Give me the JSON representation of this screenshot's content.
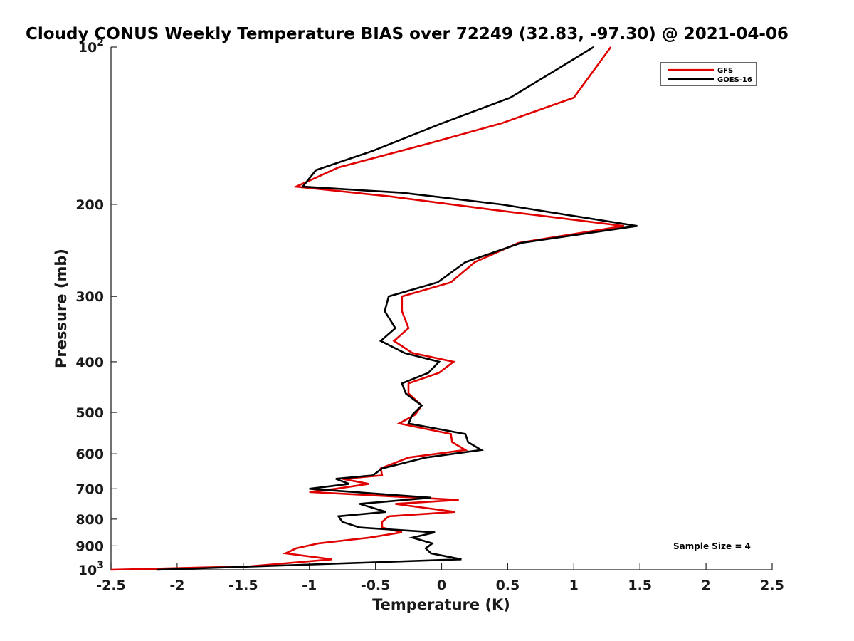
{
  "chart_data": {
    "type": "line",
    "title": "Cloudy CONUS Weekly Temperature BIAS over 72249 (32.83, -97.30) @ 2021-04-06",
    "xlabel": "Temperature (K)",
    "ylabel": "Pressure (mb)",
    "xlim": [
      -2.5,
      2.5
    ],
    "ylim": [
      100,
      1000
    ],
    "y_scale": "log",
    "y_reversed": true,
    "grid": false,
    "legend_position": "top-right",
    "x_ticks": [
      -2.5,
      -2,
      -1.5,
      -1,
      -0.5,
      0,
      0.5,
      1,
      1.5,
      2,
      2.5
    ],
    "x_tick_labels": [
      "-2.5",
      "-2",
      "-1.5",
      "-1",
      "-0.5",
      "0",
      "0.5",
      "1",
      "1.5",
      "2",
      "2.5"
    ],
    "y_ticks": [
      {
        "value": 100,
        "base": "10",
        "exp": "2"
      },
      {
        "value": 200,
        "label": "200"
      },
      {
        "value": 300,
        "label": "300"
      },
      {
        "value": 400,
        "label": "400"
      },
      {
        "value": 500,
        "label": "500"
      },
      {
        "value": 600,
        "label": "600"
      },
      {
        "value": 700,
        "label": "700"
      },
      {
        "value": 800,
        "label": "800"
      },
      {
        "value": 900,
        "label": "900"
      },
      {
        "value": 1000,
        "base": "10",
        "exp": "3"
      }
    ],
    "annotation": "Sample Size = 4",
    "series": [
      {
        "name": "GFS",
        "color": "#e00000",
        "points": [
          [
            1.28,
            100
          ],
          [
            1.0,
            125
          ],
          [
            0.45,
            140
          ],
          [
            -0.1,
            153
          ],
          [
            -0.78,
            170
          ],
          [
            -1.1,
            185
          ],
          [
            -0.4,
            193
          ],
          [
            0.4,
            205
          ],
          [
            1.38,
            220
          ],
          [
            0.58,
            237
          ],
          [
            0.25,
            258
          ],
          [
            0.07,
            282
          ],
          [
            -0.3,
            300
          ],
          [
            -0.3,
            320
          ],
          [
            -0.25,
            345
          ],
          [
            -0.36,
            365
          ],
          [
            -0.22,
            385
          ],
          [
            0.09,
            400
          ],
          [
            -0.02,
            420
          ],
          [
            -0.25,
            440
          ],
          [
            -0.25,
            460
          ],
          [
            -0.15,
            485
          ],
          [
            -0.2,
            505
          ],
          [
            -0.32,
            525
          ],
          [
            0.07,
            550
          ],
          [
            0.08,
            570
          ],
          [
            0.18,
            590
          ],
          [
            -0.25,
            610
          ],
          [
            -0.46,
            640
          ],
          [
            -0.45,
            660
          ],
          [
            -0.75,
            670
          ],
          [
            -0.55,
            685
          ],
          [
            -0.8,
            700
          ],
          [
            -1.0,
            710
          ],
          [
            0.13,
            735
          ],
          [
            -0.35,
            748
          ],
          [
            -0.15,
            760
          ],
          [
            0.1,
            775
          ],
          [
            -0.4,
            790
          ],
          [
            -0.45,
            810
          ],
          [
            -0.45,
            830
          ],
          [
            -0.3,
            848
          ],
          [
            -0.55,
            868
          ],
          [
            -0.93,
            890
          ],
          [
            -1.1,
            910
          ],
          [
            -1.18,
            930
          ],
          [
            -0.83,
            955
          ],
          [
            -1.45,
            985
          ],
          [
            -2.5,
            1000
          ]
        ]
      },
      {
        "name": "GOES-16",
        "color": "#000000",
        "points": [
          [
            1.15,
            100
          ],
          [
            0.52,
            125
          ],
          [
            0.0,
            140
          ],
          [
            -0.52,
            158
          ],
          [
            -0.95,
            172
          ],
          [
            -1.05,
            185
          ],
          [
            -0.3,
            190
          ],
          [
            0.45,
            200
          ],
          [
            1.48,
            220
          ],
          [
            0.6,
            237
          ],
          [
            0.18,
            258
          ],
          [
            -0.03,
            282
          ],
          [
            -0.4,
            300
          ],
          [
            -0.43,
            320
          ],
          [
            -0.35,
            345
          ],
          [
            -0.46,
            365
          ],
          [
            -0.28,
            385
          ],
          [
            -0.02,
            400
          ],
          [
            -0.1,
            420
          ],
          [
            -0.3,
            440
          ],
          [
            -0.27,
            460
          ],
          [
            -0.15,
            485
          ],
          [
            -0.22,
            505
          ],
          [
            -0.25,
            525
          ],
          [
            0.18,
            550
          ],
          [
            0.2,
            570
          ],
          [
            0.3,
            590
          ],
          [
            -0.12,
            610
          ],
          [
            -0.45,
            640
          ],
          [
            -0.52,
            660
          ],
          [
            -0.8,
            670
          ],
          [
            -0.7,
            685
          ],
          [
            -1.0,
            700
          ],
          [
            -0.08,
            728
          ],
          [
            -0.62,
            748
          ],
          [
            -0.42,
            775
          ],
          [
            -0.78,
            790
          ],
          [
            -0.75,
            810
          ],
          [
            -0.62,
            830
          ],
          [
            -0.05,
            848
          ],
          [
            -0.22,
            868
          ],
          [
            -0.07,
            890
          ],
          [
            -0.12,
            910
          ],
          [
            -0.08,
            930
          ],
          [
            0.15,
            955
          ],
          [
            -2.15,
            1000
          ]
        ]
      }
    ]
  }
}
